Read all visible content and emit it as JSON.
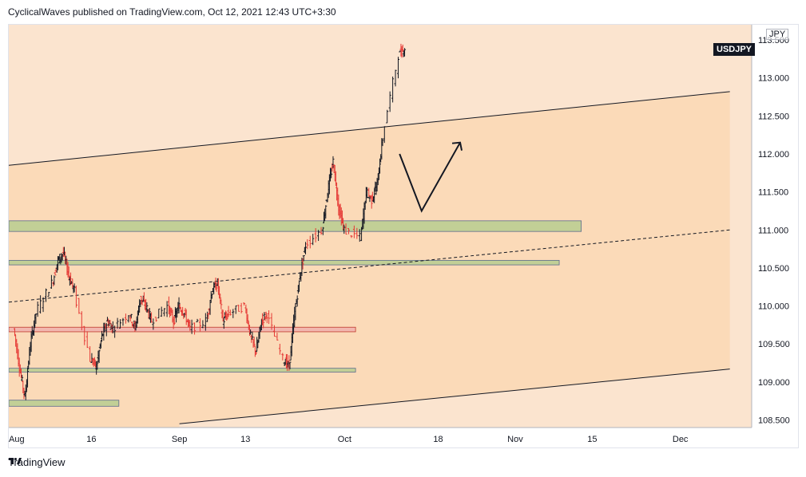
{
  "header": {
    "text": "CyclicalWaves published on TradingView.com, Oct 12, 2021 12:43 UTC+3:30"
  },
  "footer": {
    "brand": "TradingView"
  },
  "symbol": {
    "name": "USDJPY",
    "currency": "JPY"
  },
  "colors": {
    "bg_outer": "#fbe4cf",
    "bg_channel": "#fbdab8",
    "zone_green": "#c2cf96",
    "zone_red": "#f2b8b0",
    "zone_green_border": "#6a8a50",
    "zone_red_border": "#c0392b",
    "candle_up": "#131722",
    "candle_down": "#e53935"
  },
  "chart_data": {
    "type": "candlestick",
    "symbol": "USDJPY",
    "xlabels": [
      "Aug",
      "16",
      "Sep",
      "13",
      "Oct",
      "18",
      "Nov",
      "15",
      "Dec"
    ],
    "ylabels": [
      "113.000",
      "112.500",
      "112.000",
      "111.500",
      "111.000",
      "110.500",
      "110.000",
      "109.500",
      "109.000",
      "108.500"
    ],
    "ylim": [
      108.4,
      113.7
    ],
    "last_price": "113.500",
    "grid": false,
    "series_path": [
      [
        "2021-08-02",
        109.7
      ],
      [
        "2021-08-03",
        109.2
      ],
      [
        "2021-08-04",
        108.8
      ],
      [
        "2021-08-05",
        109.5
      ],
      [
        "2021-08-06",
        109.9
      ],
      [
        "2021-08-09",
        110.3
      ],
      [
        "2021-08-10",
        110.6
      ],
      [
        "2021-08-11",
        110.7
      ],
      [
        "2021-08-12",
        110.4
      ],
      [
        "2021-08-13",
        110.2
      ],
      [
        "2021-08-16",
        109.3
      ],
      [
        "2021-08-17",
        109.2
      ],
      [
        "2021-08-18",
        109.6
      ],
      [
        "2021-08-19",
        109.8
      ],
      [
        "2021-08-20",
        109.7
      ],
      [
        "2021-08-23",
        109.9
      ],
      [
        "2021-08-24",
        109.7
      ],
      [
        "2021-08-25",
        110.1
      ],
      [
        "2021-08-26",
        110.0
      ],
      [
        "2021-08-27",
        109.8
      ],
      [
        "2021-08-30",
        110.0
      ],
      [
        "2021-08-31",
        109.8
      ],
      [
        "2021-09-01",
        110.0
      ],
      [
        "2021-09-02",
        109.9
      ],
      [
        "2021-09-03",
        109.7
      ],
      [
        "2021-09-06",
        109.8
      ],
      [
        "2021-09-07",
        110.2
      ],
      [
        "2021-09-08",
        110.3
      ],
      [
        "2021-09-09",
        109.8
      ],
      [
        "2021-09-10",
        109.9
      ],
      [
        "2021-09-13",
        110.0
      ],
      [
        "2021-09-14",
        109.6
      ],
      [
        "2021-09-15",
        109.4
      ],
      [
        "2021-09-16",
        109.8
      ],
      [
        "2021-09-17",
        109.9
      ],
      [
        "2021-09-20",
        109.3
      ],
      [
        "2021-09-21",
        109.2
      ],
      [
        "2021-09-22",
        109.9
      ],
      [
        "2021-09-23",
        110.4
      ],
      [
        "2021-09-24",
        110.8
      ],
      [
        "2021-09-27",
        111.0
      ],
      [
        "2021-09-28",
        111.5
      ],
      [
        "2021-09-29",
        111.9
      ],
      [
        "2021-09-30",
        111.3
      ],
      [
        "2021-10-01",
        111.0
      ],
      [
        "2021-10-04",
        110.9
      ],
      [
        "2021-10-05",
        111.5
      ],
      [
        "2021-10-06",
        111.4
      ],
      [
        "2021-10-07",
        111.6
      ],
      [
        "2021-10-08",
        112.2
      ],
      [
        "2021-10-11",
        113.3
      ],
      [
        "2021-10-12",
        113.4
      ]
    ],
    "zones": [
      {
        "name": "upper-support",
        "type": "green",
        "y": [
          110.98,
          111.12
        ],
        "x_end": "2021-11-13"
      },
      {
        "name": "mid-support",
        "type": "green",
        "y": [
          110.54,
          110.6
        ],
        "x_end": "2021-11-09"
      },
      {
        "name": "resistance-red",
        "type": "red",
        "y": [
          109.66,
          109.72
        ],
        "x_end": "2021-10-03"
      },
      {
        "name": "lower-support",
        "type": "green",
        "y": [
          109.13,
          109.18
        ],
        "x_end": "2021-10-03"
      },
      {
        "name": "bottom-support",
        "type": "green",
        "y": [
          108.68,
          108.76
        ],
        "x_end": "2021-08-21"
      }
    ],
    "channel": {
      "upper": [
        [
          "2021-08-01",
          111.85
        ],
        [
          "2021-12-10",
          112.82
        ]
      ],
      "lower": [
        [
          "2021-09-01",
          108.45
        ],
        [
          "2021-12-10",
          109.17
        ]
      ]
    },
    "dashed_trend": [
      [
        "2021-08-01",
        110.05
      ],
      [
        "2021-12-10",
        111.0
      ]
    ],
    "projection": [
      [
        "2021-10-11",
        112.0
      ],
      [
        "2021-10-15",
        111.25
      ],
      [
        "2021-10-22",
        112.15
      ]
    ]
  }
}
